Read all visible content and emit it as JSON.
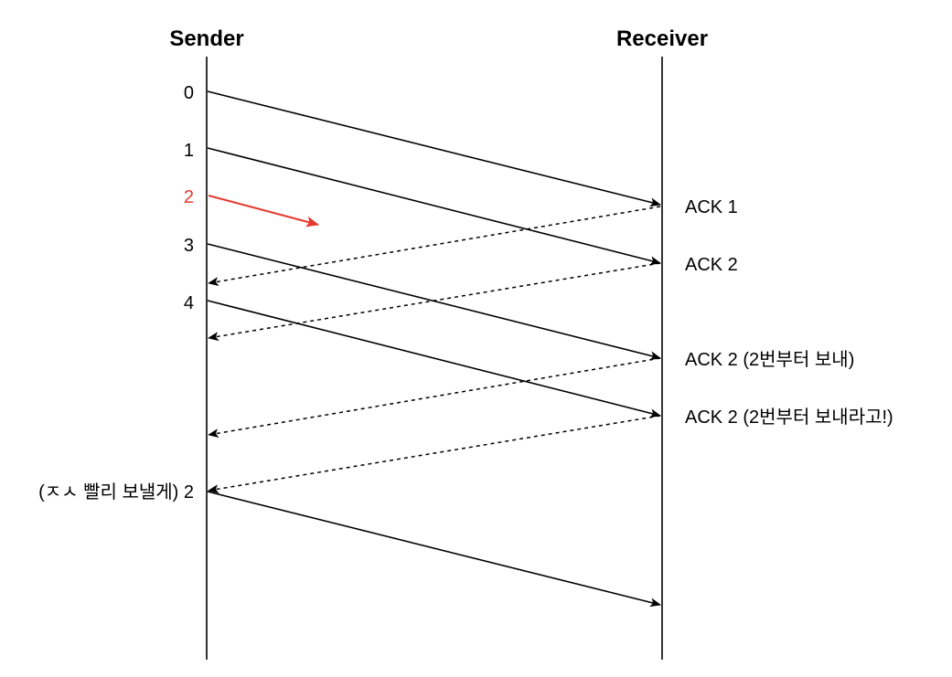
{
  "colors": {
    "line": "#000000",
    "lost": "#e53a2f",
    "background": "#ffffff"
  },
  "headers": {
    "sender": "Sender",
    "receiver": "Receiver"
  },
  "packets": [
    {
      "label": "0",
      "status": "delivered",
      "color": "#000000"
    },
    {
      "label": "1",
      "status": "delivered",
      "color": "#000000"
    },
    {
      "label": "2",
      "status": "lost",
      "color": "#e53a2f"
    },
    {
      "label": "3",
      "status": "delivered",
      "color": "#000000"
    },
    {
      "label": "4",
      "status": "delivered",
      "color": "#000000"
    }
  ],
  "acks": [
    {
      "label": "ACK 1"
    },
    {
      "label": "ACK 2"
    },
    {
      "label": "ACK 2 (2번부터 보내)"
    },
    {
      "label": "ACK 2 (2번부터 보내라고!)"
    }
  ],
  "retransmission": {
    "label": "(ㅈㅅ 빨리 보낼게) 2"
  }
}
